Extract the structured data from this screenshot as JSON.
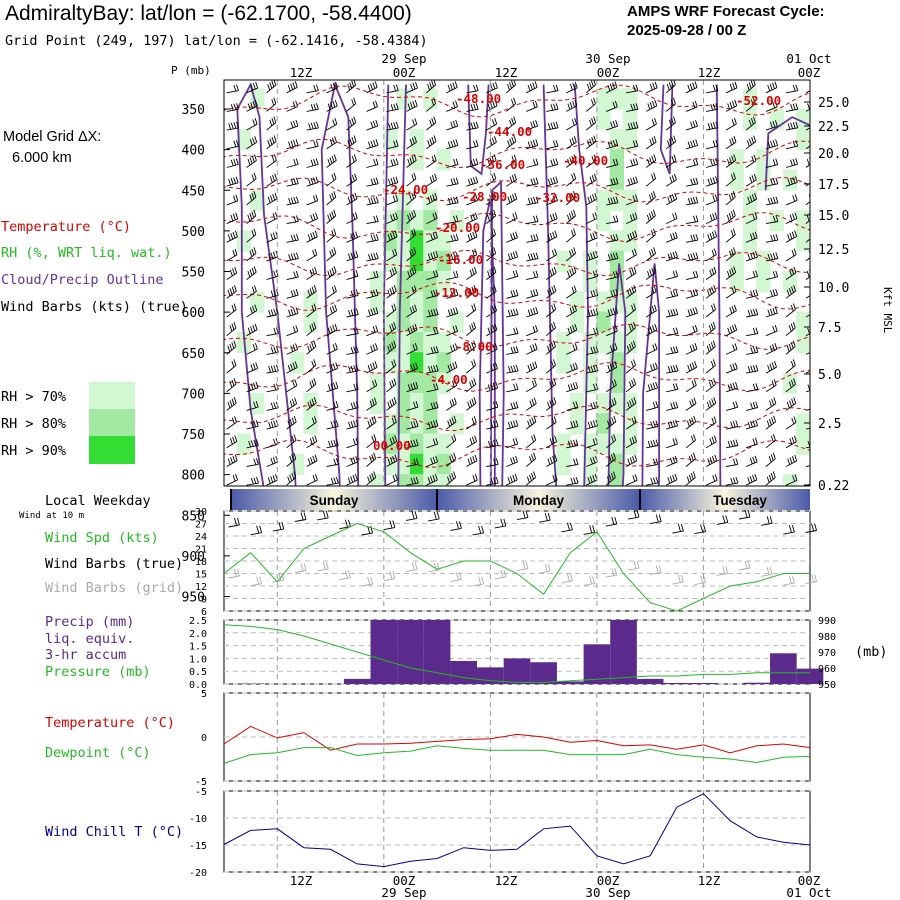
{
  "header": {
    "title": "AdmiraltyBay:  lat/lon = (-62.1700, -58.4400)",
    "grid_point": "Grid Point (249, 197) lat/lon = (-62.1416, -58.4384)",
    "cycle_label": "AMPS WRF Forecast Cycle:",
    "cycle_value": "2025-09-28 / 00  Z"
  },
  "sidebar": {
    "model_grid_line1": "Model Grid ΔX:",
    "model_grid_line2": "6.000 km",
    "legend_temperature": "Temperature (°C)",
    "legend_rh": "RH (%, WRT liq. wat.)",
    "legend_cloud": "Cloud/Precip Outline",
    "legend_wind": "Wind Barbs (kts) (true)",
    "rh_70": "RH > 70%",
    "rh_80": "RH > 80%",
    "rh_90": "RH > 90%",
    "local_weekday": "Local Weekday",
    "wind_at_10m": "Wind at 10 m",
    "wind_spd": "Wind Spd (kts)",
    "wind_barbs_true": "Wind Barbs (true)",
    "wind_barbs_grid": "Wind Barbs (grid)",
    "precip_line1": "Precip (mm)",
    "precip_line2": "liq. equiv.",
    "precip_line3": "3-hr accum",
    "pressure": "Pressure (mb)",
    "temperature": "Temperature (°C)",
    "dewpoint": "Dewpoint (°C)",
    "wind_chill": "Wind Chill T (°C)"
  },
  "colors": {
    "temperature": "#dd0000",
    "rh": "#22bb22",
    "cloud": "#663399",
    "wind": "#000000",
    "wind_grid": "#aaaaaa",
    "precip": "#5c2a8c",
    "wind_chill": "#000099",
    "rh70": "#d3f7d3",
    "rh80": "#a3e8a3",
    "rh90": "#33dd33",
    "day_band": "#4a5aa8"
  },
  "chart_data": [
    {
      "type": "heatmap",
      "name": "vertical cross-section",
      "y_label": "P (mb)",
      "y_ticks": [
        "350",
        "400",
        "450",
        "500",
        "550",
        "600",
        "650",
        "700",
        "750",
        "800",
        "850",
        "900",
        "950"
      ],
      "y2_label": "Kft MSL",
      "y2_ticks": [
        "25.0",
        "22.5",
        "20.0",
        "17.5",
        "15.0",
        "12.5",
        "10.0",
        "7.5",
        "5.0",
        "2.5",
        "0.22"
      ],
      "x_hours": [
        6,
        9,
        12,
        15,
        18,
        21,
        24,
        27,
        30,
        33,
        36,
        39,
        42,
        45,
        48,
        51,
        54,
        57,
        60,
        63,
        66,
        69,
        72
      ],
      "x_top_ticks": [
        "12Z",
        "00Z",
        "12Z",
        "00Z",
        "12Z",
        "00Z"
      ],
      "x_top_dates": [
        "29 Sep",
        "30 Sep",
        "01 Oct"
      ],
      "temperature_labels": [
        "-48.00",
        "-44.00",
        "-40.00",
        "-36.00",
        "-32.00",
        "-28.00",
        "-24.00",
        "-20.00",
        "-16.00",
        "-12.00",
        "-8.00",
        "-4.00",
        "00.00",
        "-52.00"
      ]
    },
    {
      "type": "table",
      "name": "local weekday",
      "days": [
        "Sunday",
        "Monday",
        "Tuesday"
      ]
    },
    {
      "type": "line",
      "name": "wind speed",
      "x": [
        6,
        9,
        12,
        15,
        18,
        21,
        24,
        27,
        30,
        33,
        36,
        39,
        42,
        45,
        48,
        51,
        54,
        57,
        60,
        63,
        66,
        69,
        72
      ],
      "values": [
        15,
        20,
        13,
        21,
        24,
        27,
        25,
        20,
        16,
        18,
        18,
        15,
        10,
        20,
        25,
        15,
        8,
        6,
        9,
        12,
        13,
        15,
        15
      ],
      "ylim": [
        6,
        30
      ],
      "y_ticks": [
        "30",
        "27",
        "24",
        "21",
        "18",
        "15",
        "12",
        "9",
        "6"
      ]
    },
    {
      "type": "bar",
      "name": "precip 3-hr",
      "x": [
        6,
        9,
        12,
        15,
        18,
        21,
        24,
        27,
        30,
        33,
        36,
        39,
        42,
        45,
        48,
        51,
        54,
        57,
        60,
        63,
        66,
        69,
        72
      ],
      "values": [
        0,
        0.02,
        0,
        0,
        0,
        0.2,
        2.5,
        2.5,
        2.5,
        0.9,
        0.65,
        1.0,
        0.85,
        0.1,
        1.55,
        2.5,
        0.2,
        0.04,
        0.04,
        0,
        0.05,
        1.2,
        0.6
      ],
      "ylim": [
        0,
        2.5
      ],
      "y_ticks": [
        "2.5",
        "2.0",
        "1.5",
        "1.0",
        "0.5",
        "0.0"
      ],
      "pressure_values": [
        987,
        986,
        984,
        980,
        975,
        970,
        965,
        960,
        957,
        954,
        952,
        951,
        951,
        952,
        953,
        954,
        955,
        955,
        956,
        956,
        957,
        957,
        957
      ],
      "pressure_ylim": [
        950,
        990
      ],
      "pressure_ticks": [
        "990",
        "980",
        "970",
        "960",
        "950"
      ],
      "pressure_unit": "(mb)"
    },
    {
      "type": "line",
      "name": "temperature and dewpoint",
      "x": [
        6,
        9,
        12,
        15,
        18,
        21,
        24,
        27,
        30,
        33,
        36,
        39,
        42,
        45,
        48,
        51,
        54,
        57,
        60,
        63,
        66,
        69,
        72
      ],
      "series": [
        {
          "name": "Temperature",
          "values": [
            -0.8,
            1.2,
            -0.1,
            0.5,
            -1.5,
            -0.8,
            -0.8,
            -0.7,
            -0.5,
            -0.3,
            -0.2,
            0.3,
            0,
            -0.6,
            -0.4,
            -1,
            -0.9,
            -1.4,
            -0.9,
            -1.8,
            -1,
            -0.8,
            -1.2
          ]
        },
        {
          "name": "Dewpoint",
          "values": [
            -3,
            -2,
            -1.8,
            -1.2,
            -1.2,
            -2.1,
            -1.8,
            -1.6,
            -1,
            -1.3,
            -1.5,
            -1.5,
            -1.5,
            -2,
            -2,
            -2,
            -1.4,
            -2,
            -2.3,
            -2.5,
            -2.9,
            -2.3,
            -2.2
          ]
        }
      ],
      "ylim": [
        -5,
        5
      ],
      "y_ticks": [
        "5",
        "0",
        "-5"
      ]
    },
    {
      "type": "line",
      "name": "wind chill",
      "x": [
        6,
        9,
        12,
        15,
        18,
        21,
        24,
        27,
        30,
        33,
        36,
        39,
        42,
        45,
        48,
        51,
        54,
        57,
        60,
        63,
        66,
        69,
        72
      ],
      "values": [
        -14.9,
        -12.3,
        -12,
        -15.5,
        -15.8,
        -18.5,
        -19,
        -18,
        -17.5,
        -15.5,
        -16,
        -15.8,
        -12,
        -11.5,
        -17,
        -18.5,
        -17,
        -8,
        -5.5,
        -10.5,
        -13.5,
        -14.5,
        -15
      ],
      "ylim": [
        -20,
        -5
      ],
      "y_ticks": [
        "-5",
        "-10",
        "-15",
        "-20"
      ],
      "x_ticks": [
        "12Z",
        "00Z",
        "12Z",
        "00Z",
        "12Z",
        "00Z"
      ],
      "x_dates": [
        "29 Sep",
        "30 Sep",
        "01 Oct"
      ]
    }
  ]
}
